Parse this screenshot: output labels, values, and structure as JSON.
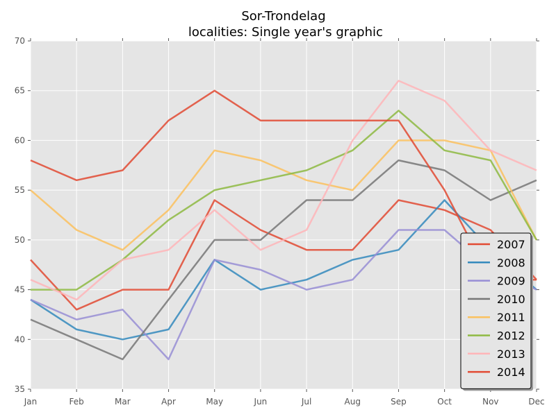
{
  "chart_data": {
    "type": "line",
    "title_line1": "Sor-Trondelag",
    "title_line2": " localities: Single year's graphic",
    "xlabel": "",
    "ylabel": "",
    "categories": [
      "Jan",
      "Feb",
      "Mar",
      "Apr",
      "May",
      "Jun",
      "Jul",
      "Aug",
      "Sep",
      "Oct",
      "Nov",
      "Dec"
    ],
    "ylim": [
      35,
      70
    ],
    "yticks": [
      35,
      40,
      45,
      50,
      55,
      60,
      65,
      70
    ],
    "grid": true,
    "legend_position": "bottom-right",
    "series": [
      {
        "name": "2007",
        "color": "#E24A33",
        "values": [
          48,
          43,
          45,
          45,
          54,
          51,
          49,
          49,
          54,
          53,
          51,
          46
        ]
      },
      {
        "name": "2008",
        "color": "#348ABD",
        "values": [
          44,
          41,
          40,
          41,
          48,
          45,
          46,
          48,
          49,
          54,
          49,
          45
        ]
      },
      {
        "name": "2009",
        "color": "#988ED5",
        "values": [
          44,
          42,
          43,
          38,
          48,
          47,
          45,
          46,
          51,
          51,
          47,
          45
        ]
      },
      {
        "name": "2010",
        "color": "#777777",
        "values": [
          42,
          40,
          38,
          44,
          50,
          50,
          54,
          54,
          58,
          57,
          54,
          56
        ]
      },
      {
        "name": "2011",
        "color": "#FBC15E",
        "values": [
          55,
          51,
          49,
          53,
          59,
          58,
          56,
          55,
          60,
          60,
          59,
          50
        ]
      },
      {
        "name": "2012",
        "color": "#8EBA42",
        "values": [
          45,
          45,
          48,
          52,
          55,
          56,
          57,
          59,
          63,
          59,
          58,
          50
        ]
      },
      {
        "name": "2013",
        "color": "#FFB5B8",
        "values": [
          46,
          44,
          48,
          49,
          53,
          49,
          51,
          60,
          66,
          64,
          59,
          57
        ]
      },
      {
        "name": "2014",
        "color": "#E24A33",
        "values": [
          58,
          56,
          57,
          62,
          65,
          62,
          62,
          62,
          62,
          55,
          46,
          46
        ]
      }
    ]
  }
}
